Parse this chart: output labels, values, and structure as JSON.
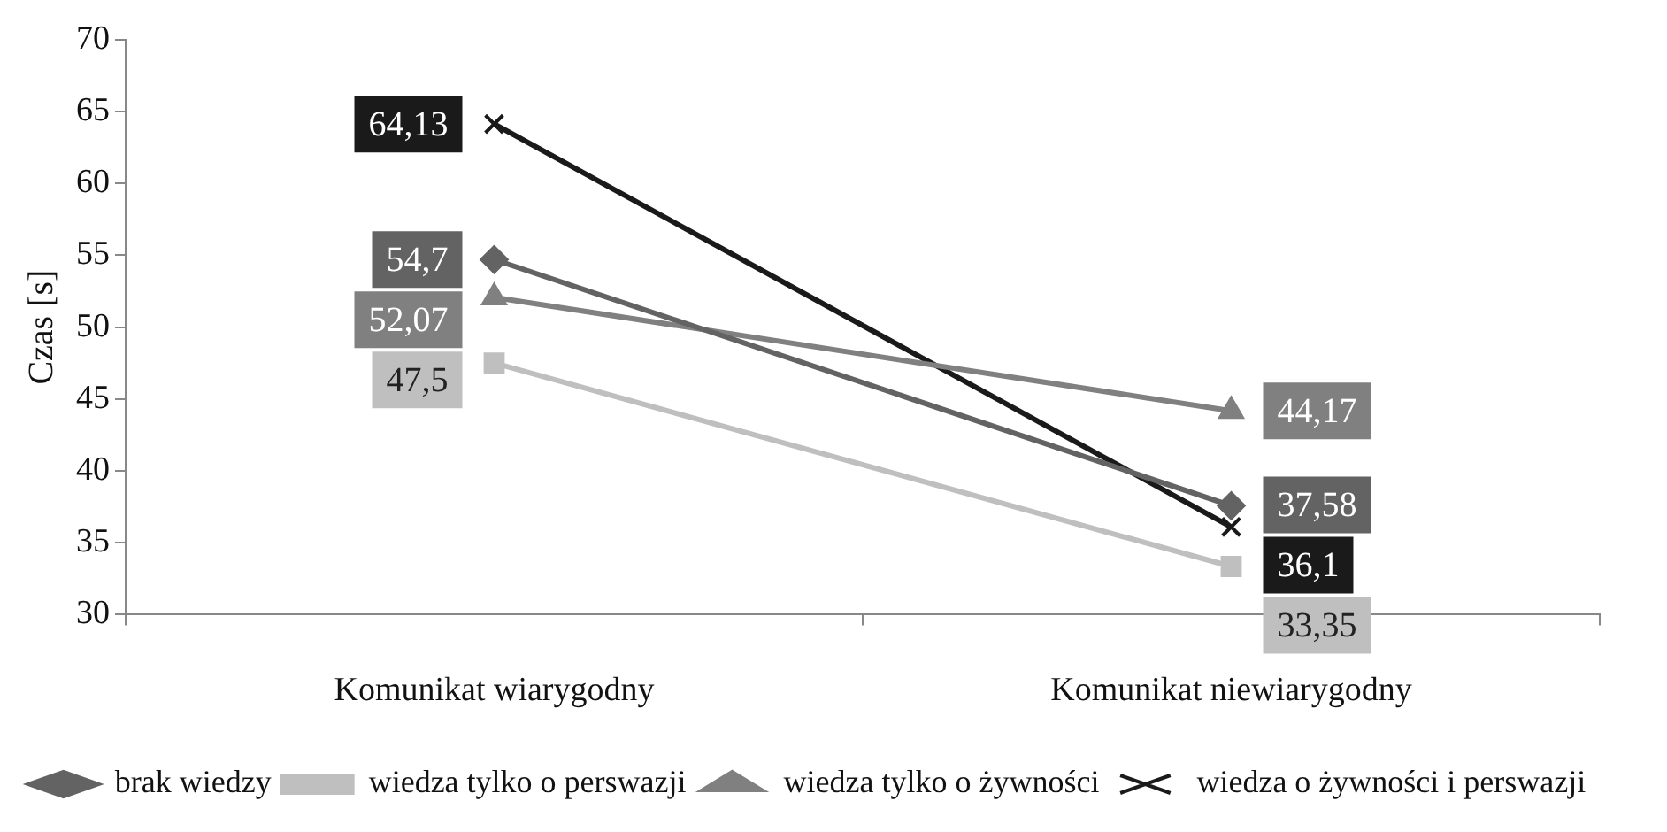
{
  "chart_data": {
    "type": "line",
    "ylabel": "Czas [s]",
    "categories": [
      "Komunikat wiarygodny",
      "Komunikat niewiarygodny"
    ],
    "ylim": [
      30,
      70
    ],
    "yticks": [
      30,
      35,
      40,
      45,
      50,
      55,
      60,
      65,
      70
    ],
    "legend": "bottom",
    "series": [
      {
        "name": "brak wiedzy",
        "color": "#636363",
        "marker": "diamond",
        "values": [
          54.7,
          37.58
        ],
        "value_labels": [
          "54,7",
          "37,58"
        ]
      },
      {
        "name": "wiedza tylko o perswazji",
        "color": "#bfbfbf",
        "marker": "square",
        "values": [
          47.5,
          33.35
        ],
        "value_labels": [
          "47,5",
          "33,35"
        ]
      },
      {
        "name": "wiedza tylko o żywności",
        "color": "#808080",
        "marker": "triangle",
        "values": [
          52.07,
          44.17
        ],
        "value_labels": [
          "52,07",
          "44,17"
        ]
      },
      {
        "name": "wiedza o żywności i perswazji",
        "color": "#1a1a1a",
        "marker": "cross",
        "values": [
          64.13,
          36.1
        ],
        "value_labels": [
          "64,13",
          "36,1"
        ]
      }
    ]
  }
}
